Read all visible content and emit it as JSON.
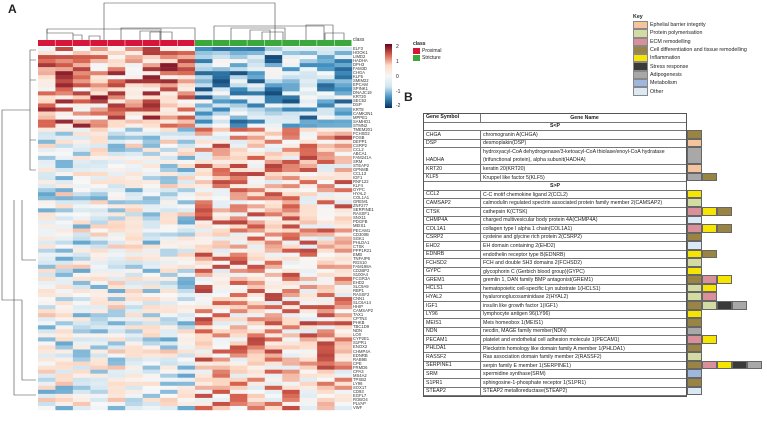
{
  "panel_a": "A",
  "panel_b": "B",
  "heatmap": {
    "class_label": "class",
    "classes": [
      {
        "name": "Proximal",
        "color": "#d7153a"
      },
      {
        "name": "Stricture",
        "color": "#3aa83a"
      }
    ],
    "column_classes": [
      "Proximal",
      "Proximal",
      "Proximal",
      "Proximal",
      "Proximal",
      "Proximal",
      "Proximal",
      "Proximal",
      "Proximal",
      "Stricture",
      "Stricture",
      "Stricture",
      "Stricture",
      "Stricture",
      "Stricture",
      "Stricture",
      "Stricture",
      "Stricture"
    ],
    "scale_ticks": [
      "2",
      "1",
      "0",
      "-1",
      "-2"
    ],
    "rows": [
      "ELF3",
      "HOOK1",
      "LIMD2",
      "HADHA",
      "DPH3",
      "FAM3D",
      "CHGA",
      "KLF5",
      "SMIM22",
      "EPCAM",
      "SPINK1",
      "DNAJC19",
      "KRT20",
      "SEC62",
      "DSP",
      "KRT8",
      "CAMK2N1",
      "MPPE1",
      "SAMHD1",
      "STMN2",
      "TMEM201",
      "FCHSD2",
      "FOSB",
      "DEPP1",
      "CSRP2",
      "CCL2",
      "ABCA1",
      "FAM241A",
      "SRM",
      "STEAP2",
      "GPNMB",
      "CCL13",
      "IGF1",
      "RNF122",
      "KLF4",
      "GYPC",
      "HYAL2",
      "COL1A1",
      "GREM1",
      "ZNF277",
      "SERPINE1",
      "RASSF1",
      "SNX11",
      "PDGFB",
      "MEIS1",
      "PECAM1",
      "CD300B",
      "SGK1",
      "PHLDA1",
      "CTSK",
      "PPP1R21",
      "EMB",
      "TNFAIP6",
      "RGS10",
      "FAM198A",
      "CD2BP2",
      "S100A4",
      "FCGR3A",
      "EHD2",
      "SLC9A9",
      "RBP1",
      "RASSF2",
      "CNN1",
      "SLC6A14",
      "HHIP",
      "CAMSAP2",
      "TAX1",
      "CPTN3",
      "PHKB",
      "TBC1D9",
      "NDN",
      "LOX",
      "CYP2E1",
      "S1PR1",
      "ENOX2",
      "CHMP4A",
      "EDNRB",
      "RAB9B",
      "CPE",
      "FRMD6",
      "CPA3",
      "MS4A2",
      "TPSB2",
      "LY96",
      "SOX17",
      "CD93",
      "EGFL7",
      "ROBO4",
      "PLVAP",
      "VWF"
    ]
  },
  "key": {
    "title": "Key",
    "items": [
      {
        "label": "Ephelial barrier integrity",
        "color": "#f5c39c"
      },
      {
        "label": "Protein polymerisation",
        "color": "#d3dba3"
      },
      {
        "label": "ECM remodelling",
        "color": "#d9909a"
      },
      {
        "label": "Cell differentiation and tissue remodelling",
        "color": "#9a8443"
      },
      {
        "label": "Inflammation",
        "color": "#f5e500"
      },
      {
        "label": "Stress response",
        "color": "#3a3a3a"
      },
      {
        "label": "Adipogenesis",
        "color": "#a8a8a8"
      },
      {
        "label": "Metabolism",
        "color": "#9fb6dd"
      },
      {
        "label": "Other",
        "color": "#dbe9f5"
      }
    ]
  },
  "table": {
    "headers": [
      "Gene Symbol",
      "Gene Name"
    ],
    "sections": [
      {
        "title": "S<P",
        "rows": [
          {
            "symbol": "CHGA",
            "name": "chromogranin A(CHGA)",
            "cats": [
              3
            ]
          },
          {
            "symbol": "DSP",
            "name": "desmoplakin(DSP)",
            "cats": [
              0
            ]
          },
          {
            "symbol": "HADHA",
            "name": "hydroxyacyl-CoA dehydrogenase/3-ketoacyl-CoA thiolase/enoyl-CoA hydratase (trifunctional protein), alpha subunit(HADHA)",
            "cats": [
              6
            ],
            "tall": true
          },
          {
            "symbol": "KRT20",
            "name": "keratin 20(KRT20)",
            "cats": [
              0
            ]
          },
          {
            "symbol": "KLF5",
            "name": "Kruppel like factor 5(KLF5)",
            "cats": [
              6,
              3
            ]
          }
        ]
      },
      {
        "title": "S>P",
        "rows": [
          {
            "symbol": "CCL2",
            "name": "C-C motif chemokine ligand 2(CCL2)",
            "cats": [
              4
            ]
          },
          {
            "symbol": "CAMSAP2",
            "name": "calmodulin regulated spectrin associated protein family member 2(CAMSAP2)",
            "cats": [
              1
            ]
          },
          {
            "symbol": "CTSK",
            "name": "cathepsin K(CTSK)",
            "cats": [
              2,
              4,
              3
            ]
          },
          {
            "symbol": "CHMP4A",
            "name": "charged multivesicular body protein 4A(CHMP4A)",
            "cats": [
              8
            ]
          },
          {
            "symbol": "COL1A1",
            "name": "collagen type I alpha 1 chain(COL1A1)",
            "cats": [
              2,
              4,
              3
            ]
          },
          {
            "symbol": "CSRP2",
            "name": "cysteine and glycine rich protein 2(CSRP2)",
            "cats": [
              3
            ]
          },
          {
            "symbol": "EHD2",
            "name": "EH domain containing 2(EHD2)",
            "cats": [
              8
            ]
          },
          {
            "symbol": "EDNRB",
            "name": "endothelin receptor type B(EDNRB)",
            "cats": [
              4,
              3
            ]
          },
          {
            "symbol": "FCHSD2",
            "name": "FCH and double SH3 domains 2(FCHSD2)",
            "cats": [
              1
            ]
          },
          {
            "symbol": "GYPC",
            "name": "glycophorin C (Gerbich blood group)(GYPC)",
            "cats": [
              4
            ]
          },
          {
            "symbol": "GREM1",
            "name": "gremlin 1, DAN family BMP antagonist(GREM1)",
            "cats": [
              3,
              2,
              4
            ]
          },
          {
            "symbol": "HCLS1",
            "name": "hematopoietic cell-specific Lyn substrate 1(HCLS1)",
            "cats": [
              1,
              4
            ]
          },
          {
            "symbol": "HYAL2",
            "name": "hyaluronoglucosaminidase 2(HYAL2)",
            "cats": [
              1,
              2
            ]
          },
          {
            "symbol": "IGF1",
            "name": "insulin like growth factor 1(IGF1)",
            "cats": [
              3,
              1,
              5,
              6
            ]
          },
          {
            "symbol": "LY96",
            "name": "lymphocyte antigen 96(LY96)",
            "cats": [
              4
            ]
          },
          {
            "symbol": "MEIS1",
            "name": "Meis homeobox 1(MEIS1)",
            "cats": [
              3
            ]
          },
          {
            "symbol": "NDN",
            "name": "necdin, MAGE family member(NDN)",
            "cats": [
              6
            ]
          },
          {
            "symbol": "PECAM1",
            "name": "platelet and endothelial cell adhesion molecule 1(PECAM1)",
            "cats": [
              2,
              4
            ]
          },
          {
            "symbol": "PHLDA1",
            "name": "Pleckstrin homology like domain family A member 1(PHLDA1)",
            "cats": [
              3
            ]
          },
          {
            "symbol": "RASSF2",
            "name": "Ras association domain family member 2(RASSF2)",
            "cats": [
              1
            ]
          },
          {
            "symbol": "SERPINE1",
            "name": "serpin family E member 1(SERPINE1)",
            "cats": [
              3,
              2,
              4,
              5,
              6
            ]
          },
          {
            "symbol": "SRM",
            "name": "spermidine synthase(SRM)",
            "cats": [
              7
            ]
          },
          {
            "symbol": "S1PR1",
            "name": "sphingosine-1-phosphate receptor 1(S1PR1)",
            "cats": [
              3
            ]
          },
          {
            "symbol": "STEAP2",
            "name": "STEAP2 metalloreductase(STEAP2)",
            "cats": [
              8
            ]
          }
        ]
      }
    ]
  }
}
